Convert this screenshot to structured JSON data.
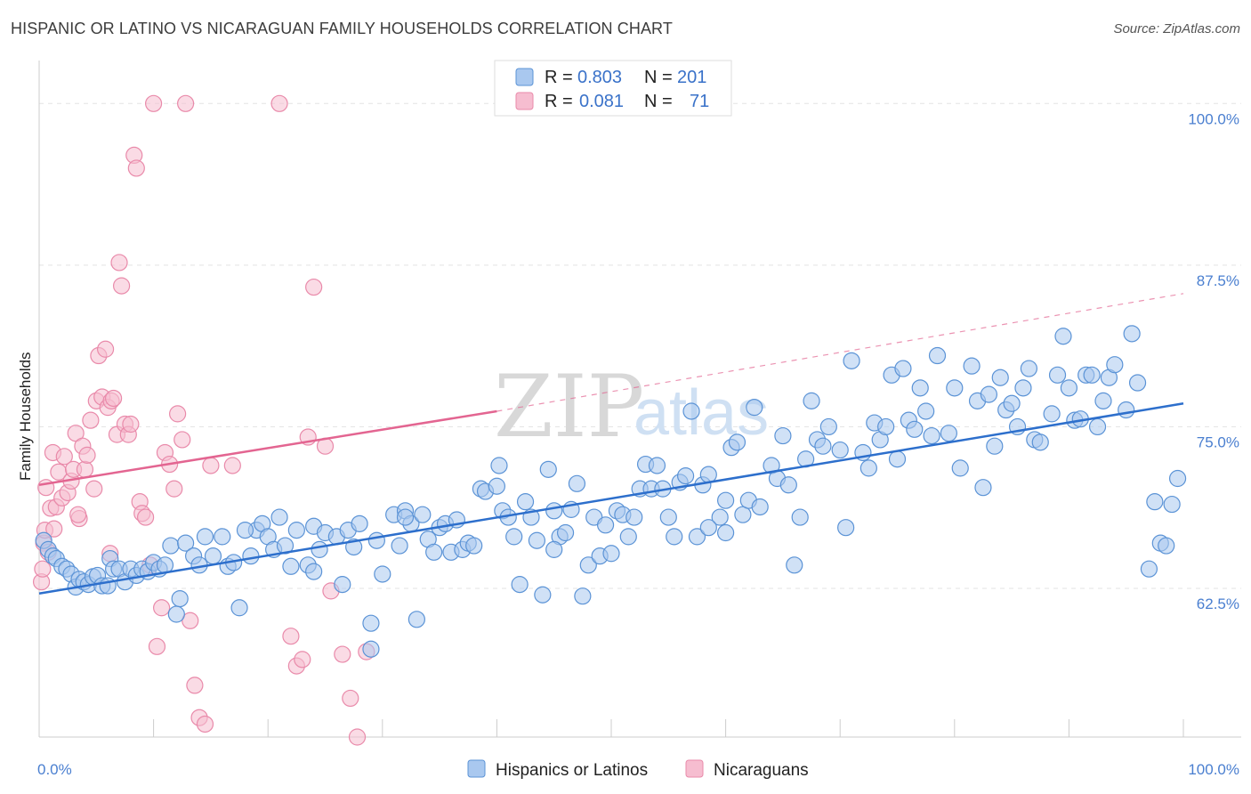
{
  "title": "HISPANIC OR LATINO VS NICARAGUAN FAMILY HOUSEHOLDS CORRELATION CHART",
  "source": "Source: ZipAtlas.com",
  "watermark": {
    "zip": "ZIP",
    "atlas": "atlas"
  },
  "colors": {
    "blue_fill": "#a9c8ef",
    "blue_stroke": "#5b93d6",
    "blue_line": "#2d6fcc",
    "pink_fill": "#f6bdd0",
    "pink_stroke": "#e98aaa",
    "pink_line": "#e36591",
    "grid": "#e3e3e3",
    "label": "#4a7fd0"
  },
  "legend": {
    "rows": [
      {
        "r_label": "R =",
        "r_value": "0.803",
        "n_label": "N =",
        "n_value": "201"
      },
      {
        "r_label": "R =",
        "r_value": "0.081",
        "n_label": "N =",
        "n_value": "71"
      }
    ]
  },
  "bottom_legend": [
    "Hispanics or Latinos",
    "Nicaraguans"
  ],
  "chart_data": {
    "type": "scatter",
    "title": "HISPANIC OR LATINO VS NICARAGUAN FAMILY HOUSEHOLDS CORRELATION CHART",
    "xlabel": "",
    "ylabel": "Family Households",
    "xlim": [
      0,
      100
    ],
    "ylim": [
      51,
      102.5
    ],
    "x_tick_labels": [
      "0.0%",
      "100.0%"
    ],
    "y_ticks": [
      62.5,
      75.0,
      87.5,
      100.0
    ],
    "y_tick_labels": [
      "62.5%",
      "75.0%",
      "87.5%",
      "100.0%"
    ],
    "grid": true,
    "legend_position": "top-center",
    "series": [
      {
        "name": "Hispanics or Latinos",
        "r": 0.803,
        "n": 201,
        "trend": {
          "x": [
            0,
            100
          ],
          "y": [
            62.1,
            76.8
          ]
        },
        "points": [
          [
            0.4,
            66.2
          ],
          [
            0.8,
            65.5
          ],
          [
            1.2,
            65.0
          ],
          [
            1.5,
            64.8
          ],
          [
            2.0,
            64.2
          ],
          [
            2.4,
            64.0
          ],
          [
            2.8,
            63.6
          ],
          [
            3.2,
            62.6
          ],
          [
            3.5,
            63.2
          ],
          [
            3.9,
            63.0
          ],
          [
            4.3,
            62.8
          ],
          [
            4.7,
            63.4
          ],
          [
            5.1,
            63.5
          ],
          [
            5.5,
            62.7
          ],
          [
            6.0,
            62.7
          ],
          [
            6.2,
            64.8
          ],
          [
            6.5,
            64.0
          ],
          [
            7.0,
            64.0
          ],
          [
            7.5,
            63.0
          ],
          [
            8.0,
            64.0
          ],
          [
            8.5,
            63.5
          ],
          [
            9.0,
            64.0
          ],
          [
            9.5,
            63.8
          ],
          [
            10.0,
            64.5
          ],
          [
            10.5,
            64.0
          ],
          [
            11.0,
            64.3
          ],
          [
            11.5,
            65.8
          ],
          [
            12.0,
            60.5
          ],
          [
            12.3,
            61.7
          ],
          [
            12.8,
            66.0
          ],
          [
            13.5,
            65.0
          ],
          [
            14.0,
            64.3
          ],
          [
            14.5,
            66.5
          ],
          [
            15.2,
            65.0
          ],
          [
            16.0,
            66.5
          ],
          [
            16.5,
            64.2
          ],
          [
            17.0,
            64.5
          ],
          [
            17.5,
            61.0
          ],
          [
            18.5,
            65.0
          ],
          [
            19.0,
            67.0
          ],
          [
            19.5,
            67.5
          ],
          [
            20.0,
            66.5
          ],
          [
            20.5,
            65.5
          ],
          [
            21.0,
            68.0
          ],
          [
            21.5,
            65.8
          ],
          [
            22.0,
            64.2
          ],
          [
            22.5,
            67.0
          ],
          [
            23.5,
            64.3
          ],
          [
            24.0,
            67.3
          ],
          [
            24.5,
            65.5
          ],
          [
            25.0,
            66.8
          ],
          [
            26.0,
            66.5
          ],
          [
            26.5,
            62.8
          ],
          [
            27.0,
            67.0
          ],
          [
            27.5,
            65.7
          ],
          [
            28.0,
            67.5
          ],
          [
            29.0,
            59.8
          ],
          [
            29.0,
            57.8
          ],
          [
            29.5,
            66.2
          ],
          [
            30.0,
            63.6
          ],
          [
            31.0,
            68.2
          ],
          [
            31.5,
            65.8
          ],
          [
            32.0,
            68.5
          ],
          [
            32.5,
            67.5
          ],
          [
            33.0,
            60.1
          ],
          [
            33.5,
            68.2
          ],
          [
            34.0,
            66.3
          ],
          [
            34.5,
            65.3
          ],
          [
            35.0,
            67.2
          ],
          [
            35.5,
            67.5
          ],
          [
            36.0,
            65.3
          ],
          [
            36.5,
            67.8
          ],
          [
            37.0,
            65.5
          ],
          [
            37.5,
            66.0
          ],
          [
            38.0,
            65.8
          ],
          [
            38.6,
            70.2
          ],
          [
            39.0,
            70.0
          ],
          [
            40.0,
            70.4
          ],
          [
            40.2,
            72.0
          ],
          [
            40.5,
            68.5
          ],
          [
            41.0,
            68.0
          ],
          [
            41.5,
            66.5
          ],
          [
            42.0,
            62.8
          ],
          [
            42.5,
            69.2
          ],
          [
            43.0,
            68.0
          ],
          [
            43.5,
            66.2
          ],
          [
            44.0,
            62.0
          ],
          [
            44.5,
            71.7
          ],
          [
            45.0,
            68.5
          ],
          [
            45.5,
            66.5
          ],
          [
            46.0,
            66.8
          ],
          [
            46.5,
            68.6
          ],
          [
            47.0,
            70.6
          ],
          [
            47.5,
            61.9
          ],
          [
            48.0,
            64.3
          ],
          [
            48.5,
            68.0
          ],
          [
            49.0,
            65.0
          ],
          [
            49.5,
            67.4
          ],
          [
            50.0,
            65.2
          ],
          [
            50.5,
            68.5
          ],
          [
            51.0,
            68.2
          ],
          [
            51.5,
            66.5
          ],
          [
            52.0,
            68.0
          ],
          [
            52.5,
            70.2
          ],
          [
            53.0,
            72.1
          ],
          [
            53.5,
            70.2
          ],
          [
            54.0,
            72.0
          ],
          [
            54.5,
            70.2
          ],
          [
            55.0,
            68.0
          ],
          [
            55.5,
            66.5
          ],
          [
            56.0,
            70.7
          ],
          [
            56.5,
            71.2
          ],
          [
            57.0,
            76.2
          ],
          [
            57.5,
            66.5
          ],
          [
            58.0,
            70.5
          ],
          [
            58.5,
            71.3
          ],
          [
            59.5,
            68.0
          ],
          [
            60.0,
            66.8
          ],
          [
            60.5,
            73.4
          ],
          [
            61.0,
            73.8
          ],
          [
            61.5,
            68.2
          ],
          [
            62.0,
            69.3
          ],
          [
            62.5,
            76.5
          ],
          [
            63.0,
            68.8
          ],
          [
            64.0,
            72.0
          ],
          [
            64.5,
            71.0
          ],
          [
            65.0,
            74.3
          ],
          [
            65.5,
            70.5
          ],
          [
            66.0,
            64.3
          ],
          [
            66.5,
            68.0
          ],
          [
            67.0,
            72.5
          ],
          [
            67.5,
            77.0
          ],
          [
            68.0,
            74.0
          ],
          [
            68.5,
            73.5
          ],
          [
            69.0,
            75.0
          ],
          [
            70.0,
            73.2
          ],
          [
            70.5,
            67.2
          ],
          [
            71.0,
            80.1
          ],
          [
            72.0,
            73.0
          ],
          [
            72.5,
            71.8
          ],
          [
            73.0,
            75.3
          ],
          [
            73.5,
            74.0
          ],
          [
            74.0,
            75.0
          ],
          [
            74.5,
            79.0
          ],
          [
            75.0,
            72.5
          ],
          [
            75.5,
            79.5
          ],
          [
            76.0,
            75.5
          ],
          [
            76.5,
            74.8
          ],
          [
            77.0,
            78.0
          ],
          [
            77.5,
            76.2
          ],
          [
            78.0,
            74.3
          ],
          [
            78.5,
            80.5
          ],
          [
            79.5,
            74.5
          ],
          [
            80.0,
            78.0
          ],
          [
            80.5,
            71.8
          ],
          [
            81.5,
            79.7
          ],
          [
            82.0,
            77.0
          ],
          [
            82.5,
            70.3
          ],
          [
            83.0,
            77.5
          ],
          [
            83.5,
            73.5
          ],
          [
            84.0,
            78.8
          ],
          [
            84.5,
            76.3
          ],
          [
            85.0,
            76.8
          ],
          [
            85.5,
            75.0
          ],
          [
            86.0,
            78.0
          ],
          [
            86.5,
            79.5
          ],
          [
            87.0,
            74.0
          ],
          [
            87.5,
            73.8
          ],
          [
            88.5,
            76.0
          ],
          [
            89.0,
            79.0
          ],
          [
            89.5,
            82.0
          ],
          [
            90.0,
            78.0
          ],
          [
            90.5,
            75.5
          ],
          [
            91.0,
            75.6
          ],
          [
            91.5,
            79.0
          ],
          [
            92.0,
            79.0
          ],
          [
            92.5,
            75.0
          ],
          [
            93.0,
            77.0
          ],
          [
            93.5,
            78.8
          ],
          [
            94.0,
            79.8
          ],
          [
            95.0,
            76.3
          ],
          [
            95.5,
            82.2
          ],
          [
            96.0,
            78.4
          ],
          [
            97.0,
            64.0
          ],
          [
            97.5,
            69.2
          ],
          [
            98.0,
            66.0
          ],
          [
            98.5,
            65.8
          ],
          [
            99.0,
            69.0
          ],
          [
            99.5,
            71.0
          ],
          [
            32.0,
            68.0
          ],
          [
            18.0,
            67.0
          ],
          [
            24.0,
            63.8
          ],
          [
            45.0,
            65.5
          ],
          [
            58.5,
            67.2
          ],
          [
            60.0,
            69.3
          ]
        ]
      },
      {
        "name": "Nicaraguans",
        "r": 0.081,
        "n": 71,
        "trend": {
          "x": [
            0,
            40
          ],
          "y": [
            70.5,
            76.2
          ],
          "dashed_to": {
            "x": 100,
            "y": 85.3
          }
        },
        "points": [
          [
            0.2,
            63.0
          ],
          [
            0.3,
            64.0
          ],
          [
            0.4,
            66.0
          ],
          [
            0.5,
            67.0
          ],
          [
            0.6,
            70.3
          ],
          [
            0.8,
            65.3
          ],
          [
            1.0,
            68.7
          ],
          [
            1.2,
            73.0
          ],
          [
            1.3,
            67.1
          ],
          [
            1.5,
            68.8
          ],
          [
            1.7,
            71.5
          ],
          [
            2.0,
            69.5
          ],
          [
            2.2,
            72.7
          ],
          [
            2.5,
            69.9
          ],
          [
            2.8,
            70.8
          ],
          [
            3.0,
            71.7
          ],
          [
            3.2,
            74.5
          ],
          [
            3.5,
            67.9
          ],
          [
            3.8,
            73.5
          ],
          [
            4.0,
            71.7
          ],
          [
            4.2,
            72.8
          ],
          [
            4.5,
            75.5
          ],
          [
            4.8,
            70.2
          ],
          [
            5.0,
            77.0
          ],
          [
            5.2,
            80.5
          ],
          [
            5.5,
            77.3
          ],
          [
            5.8,
            81.0
          ],
          [
            6.0,
            76.5
          ],
          [
            6.3,
            77.0
          ],
          [
            6.5,
            77.2
          ],
          [
            6.8,
            74.4
          ],
          [
            7.0,
            87.7
          ],
          [
            7.2,
            85.9
          ],
          [
            7.5,
            75.2
          ],
          [
            7.8,
            74.4
          ],
          [
            8.0,
            75.2
          ],
          [
            8.3,
            96.0
          ],
          [
            8.5,
            95.0
          ],
          [
            8.8,
            69.2
          ],
          [
            9.0,
            68.3
          ],
          [
            9.3,
            68.0
          ],
          [
            9.7,
            64.3
          ],
          [
            10.0,
            100.0
          ],
          [
            10.3,
            58.0
          ],
          [
            10.7,
            61.0
          ],
          [
            11.0,
            73.0
          ],
          [
            11.4,
            72.1
          ],
          [
            11.8,
            70.2
          ],
          [
            12.1,
            76.0
          ],
          [
            12.5,
            74.0
          ],
          [
            12.8,
            100.0
          ],
          [
            13.2,
            60.0
          ],
          [
            13.6,
            55.0
          ],
          [
            14.0,
            52.5
          ],
          [
            14.5,
            52.0
          ],
          [
            15.0,
            72.0
          ],
          [
            21.0,
            100.0
          ],
          [
            22.0,
            58.8
          ],
          [
            22.5,
            56.5
          ],
          [
            23.0,
            57.0
          ],
          [
            23.5,
            74.2
          ],
          [
            24.0,
            85.8
          ],
          [
            25.0,
            73.5
          ],
          [
            25.5,
            62.3
          ],
          [
            26.5,
            57.4
          ],
          [
            27.2,
            54.0
          ],
          [
            27.8,
            51.0
          ],
          [
            28.6,
            57.6
          ],
          [
            6.2,
            65.2
          ],
          [
            3.4,
            68.2
          ],
          [
            16.9,
            72.0
          ]
        ]
      }
    ]
  }
}
